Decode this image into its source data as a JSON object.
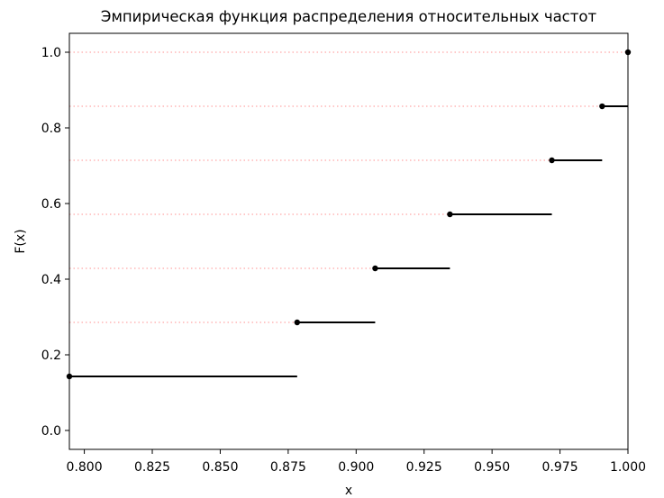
{
  "chart_data": {
    "type": "line",
    "title": "Эмпирическая функция распределения относительных частот",
    "xlabel": "x",
    "ylabel": "F(x)",
    "xlim": [
      0.7945,
      1.0
    ],
    "ylim": [
      -0.05,
      1.05
    ],
    "xticks": [
      0.8,
      0.825,
      0.85,
      0.875,
      0.9,
      0.925,
      0.95,
      0.975,
      1.0
    ],
    "xtick_labels": [
      "0.800",
      "0.825",
      "0.850",
      "0.875",
      "0.900",
      "0.925",
      "0.950",
      "0.975",
      "1.000"
    ],
    "yticks": [
      0.0,
      0.2,
      0.4,
      0.6,
      0.8,
      1.0
    ],
    "ytick_labels": [
      "0.0",
      "0.2",
      "0.4",
      "0.6",
      "0.8",
      "1.0"
    ],
    "grid": false,
    "legend": "none",
    "step_color": "#000000",
    "guide_color": "#ffb6b6",
    "steps": [
      {
        "x_start": 0.7945,
        "x_end": 0.8783,
        "y": 0.1429
      },
      {
        "x_start": 0.8783,
        "x_end": 0.907,
        "y": 0.2857
      },
      {
        "x_start": 0.907,
        "x_end": 0.9345,
        "y": 0.4286
      },
      {
        "x_start": 0.9345,
        "x_end": 0.972,
        "y": 0.5714
      },
      {
        "x_start": 0.972,
        "x_end": 0.9905,
        "y": 0.7143
      },
      {
        "x_start": 0.9905,
        "x_end": 1.0,
        "y": 0.8571
      },
      {
        "x_start": 1.0,
        "x_end": 1.0,
        "y": 1.0
      }
    ]
  }
}
